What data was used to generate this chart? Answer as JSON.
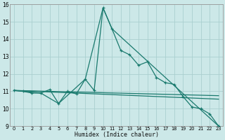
{
  "xlabel": "Humidex (Indice chaleur)",
  "background_color": "#cce8e8",
  "grid_color": "#aacfcf",
  "line_color": "#1a7a6e",
  "xlim": [
    -0.5,
    23.5
  ],
  "ylim": [
    9,
    16
  ],
  "xticks": [
    0,
    1,
    2,
    3,
    4,
    5,
    6,
    7,
    8,
    9,
    10,
    11,
    12,
    13,
    14,
    15,
    16,
    17,
    18,
    19,
    20,
    21,
    22,
    23
  ],
  "yticks": [
    9,
    10,
    11,
    12,
    13,
    14,
    15,
    16
  ],
  "series1_x": [
    0,
    1,
    2,
    3,
    4,
    5,
    6,
    7,
    8,
    9,
    10,
    11,
    12,
    13,
    14,
    15,
    16,
    17,
    18,
    19,
    20,
    21,
    22,
    23
  ],
  "series1_y": [
    11.05,
    11.0,
    10.9,
    10.9,
    11.1,
    10.3,
    11.0,
    10.85,
    11.7,
    11.05,
    15.8,
    14.6,
    13.35,
    13.1,
    12.5,
    12.7,
    11.8,
    11.5,
    11.4,
    10.7,
    10.1,
    10.0,
    9.7,
    9.0
  ],
  "series2_x": [
    0,
    3,
    5,
    8,
    10,
    11,
    23
  ],
  "series2_y": [
    11.05,
    10.9,
    10.3,
    11.7,
    15.8,
    14.6,
    9.0
  ],
  "series3_x": [
    0,
    23
  ],
  "series3_y": [
    11.05,
    10.75
  ],
  "series4_x": [
    0,
    23
  ],
  "series4_y": [
    11.05,
    10.55
  ]
}
